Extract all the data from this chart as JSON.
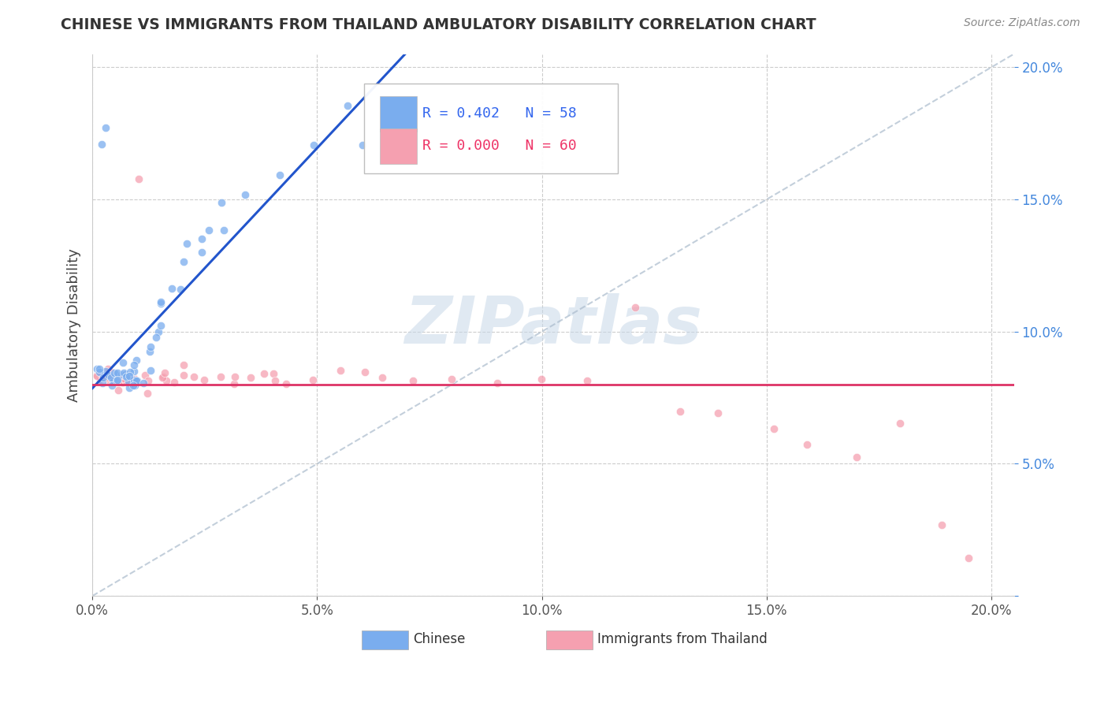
{
  "title": "CHINESE VS IMMIGRANTS FROM THAILAND AMBULATORY DISABILITY CORRELATION CHART",
  "source_text": "Source: ZipAtlas.com",
  "ylabel": "Ambulatory Disability",
  "series1_label": "Chinese",
  "series2_label": "Immigrants from Thailand",
  "series1_color": "#7aadee",
  "series2_color": "#f5a0b0",
  "series1_R": "0.402",
  "series1_N": "58",
  "series2_R": "0.000",
  "series2_N": "60",
  "regression1_color": "#2255cc",
  "regression2_color": "#dd3366",
  "reference_line_color": "#aabbcc",
  "watermark": "ZIPatlas",
  "xlim": [
    0.0,
    0.21
  ],
  "ylim": [
    0.0,
    0.21
  ],
  "tick_pct": [
    0.0,
    0.05,
    0.1,
    0.15,
    0.2
  ],
  "legend_R1": "R = 0.402",
  "legend_N1": "N = 58",
  "legend_R2": "R = 0.000",
  "legend_N2": "N = 60",
  "series1_x": [
    0.001,
    0.002,
    0.002,
    0.003,
    0.003,
    0.003,
    0.004,
    0.004,
    0.004,
    0.005,
    0.005,
    0.005,
    0.005,
    0.006,
    0.006,
    0.006,
    0.006,
    0.007,
    0.007,
    0.007,
    0.007,
    0.008,
    0.008,
    0.008,
    0.008,
    0.009,
    0.009,
    0.009,
    0.01,
    0.01,
    0.01,
    0.011,
    0.011,
    0.012,
    0.012,
    0.013,
    0.013,
    0.014,
    0.015,
    0.015,
    0.016,
    0.017,
    0.018,
    0.019,
    0.02,
    0.021,
    0.022,
    0.024,
    0.025,
    0.027,
    0.03,
    0.035,
    0.04,
    0.05,
    0.06,
    0.001,
    0.002,
    0.055
  ],
  "series1_y": [
    0.083,
    0.083,
    0.082,
    0.083,
    0.082,
    0.084,
    0.083,
    0.082,
    0.084,
    0.083,
    0.082,
    0.084,
    0.083,
    0.083,
    0.082,
    0.084,
    0.083,
    0.083,
    0.082,
    0.084,
    0.085,
    0.083,
    0.082,
    0.083,
    0.085,
    0.083,
    0.082,
    0.085,
    0.083,
    0.082,
    0.085,
    0.083,
    0.085,
    0.083,
    0.085,
    0.09,
    0.095,
    0.098,
    0.1,
    0.105,
    0.11,
    0.112,
    0.115,
    0.12,
    0.125,
    0.128,
    0.13,
    0.135,
    0.138,
    0.142,
    0.148,
    0.155,
    0.16,
    0.168,
    0.172,
    0.17,
    0.175,
    0.185
  ],
  "series2_x": [
    0.001,
    0.002,
    0.002,
    0.003,
    0.003,
    0.004,
    0.004,
    0.005,
    0.005,
    0.006,
    0.006,
    0.007,
    0.007,
    0.008,
    0.008,
    0.009,
    0.01,
    0.01,
    0.011,
    0.012,
    0.013,
    0.014,
    0.015,
    0.016,
    0.017,
    0.018,
    0.019,
    0.02,
    0.022,
    0.025,
    0.028,
    0.03,
    0.032,
    0.035,
    0.038,
    0.04,
    0.042,
    0.045,
    0.05,
    0.055,
    0.06,
    0.065,
    0.07,
    0.08,
    0.09,
    0.1,
    0.11,
    0.12,
    0.13,
    0.14,
    0.15,
    0.16,
    0.17,
    0.18,
    0.19,
    0.195,
    0.003,
    0.004,
    0.006,
    0.008
  ],
  "series2_y": [
    0.083,
    0.083,
    0.082,
    0.083,
    0.082,
    0.083,
    0.082,
    0.083,
    0.082,
    0.083,
    0.082,
    0.083,
    0.082,
    0.083,
    0.082,
    0.083,
    0.082,
    0.158,
    0.083,
    0.083,
    0.082,
    0.083,
    0.082,
    0.083,
    0.083,
    0.082,
    0.083,
    0.082,
    0.083,
    0.082,
    0.083,
    0.082,
    0.083,
    0.082,
    0.083,
    0.083,
    0.082,
    0.083,
    0.083,
    0.082,
    0.083,
    0.082,
    0.083,
    0.082,
    0.083,
    0.083,
    0.082,
    0.11,
    0.068,
    0.072,
    0.065,
    0.06,
    0.055,
    0.065,
    0.03,
    0.013,
    0.083,
    0.083,
    0.083,
    0.083
  ]
}
